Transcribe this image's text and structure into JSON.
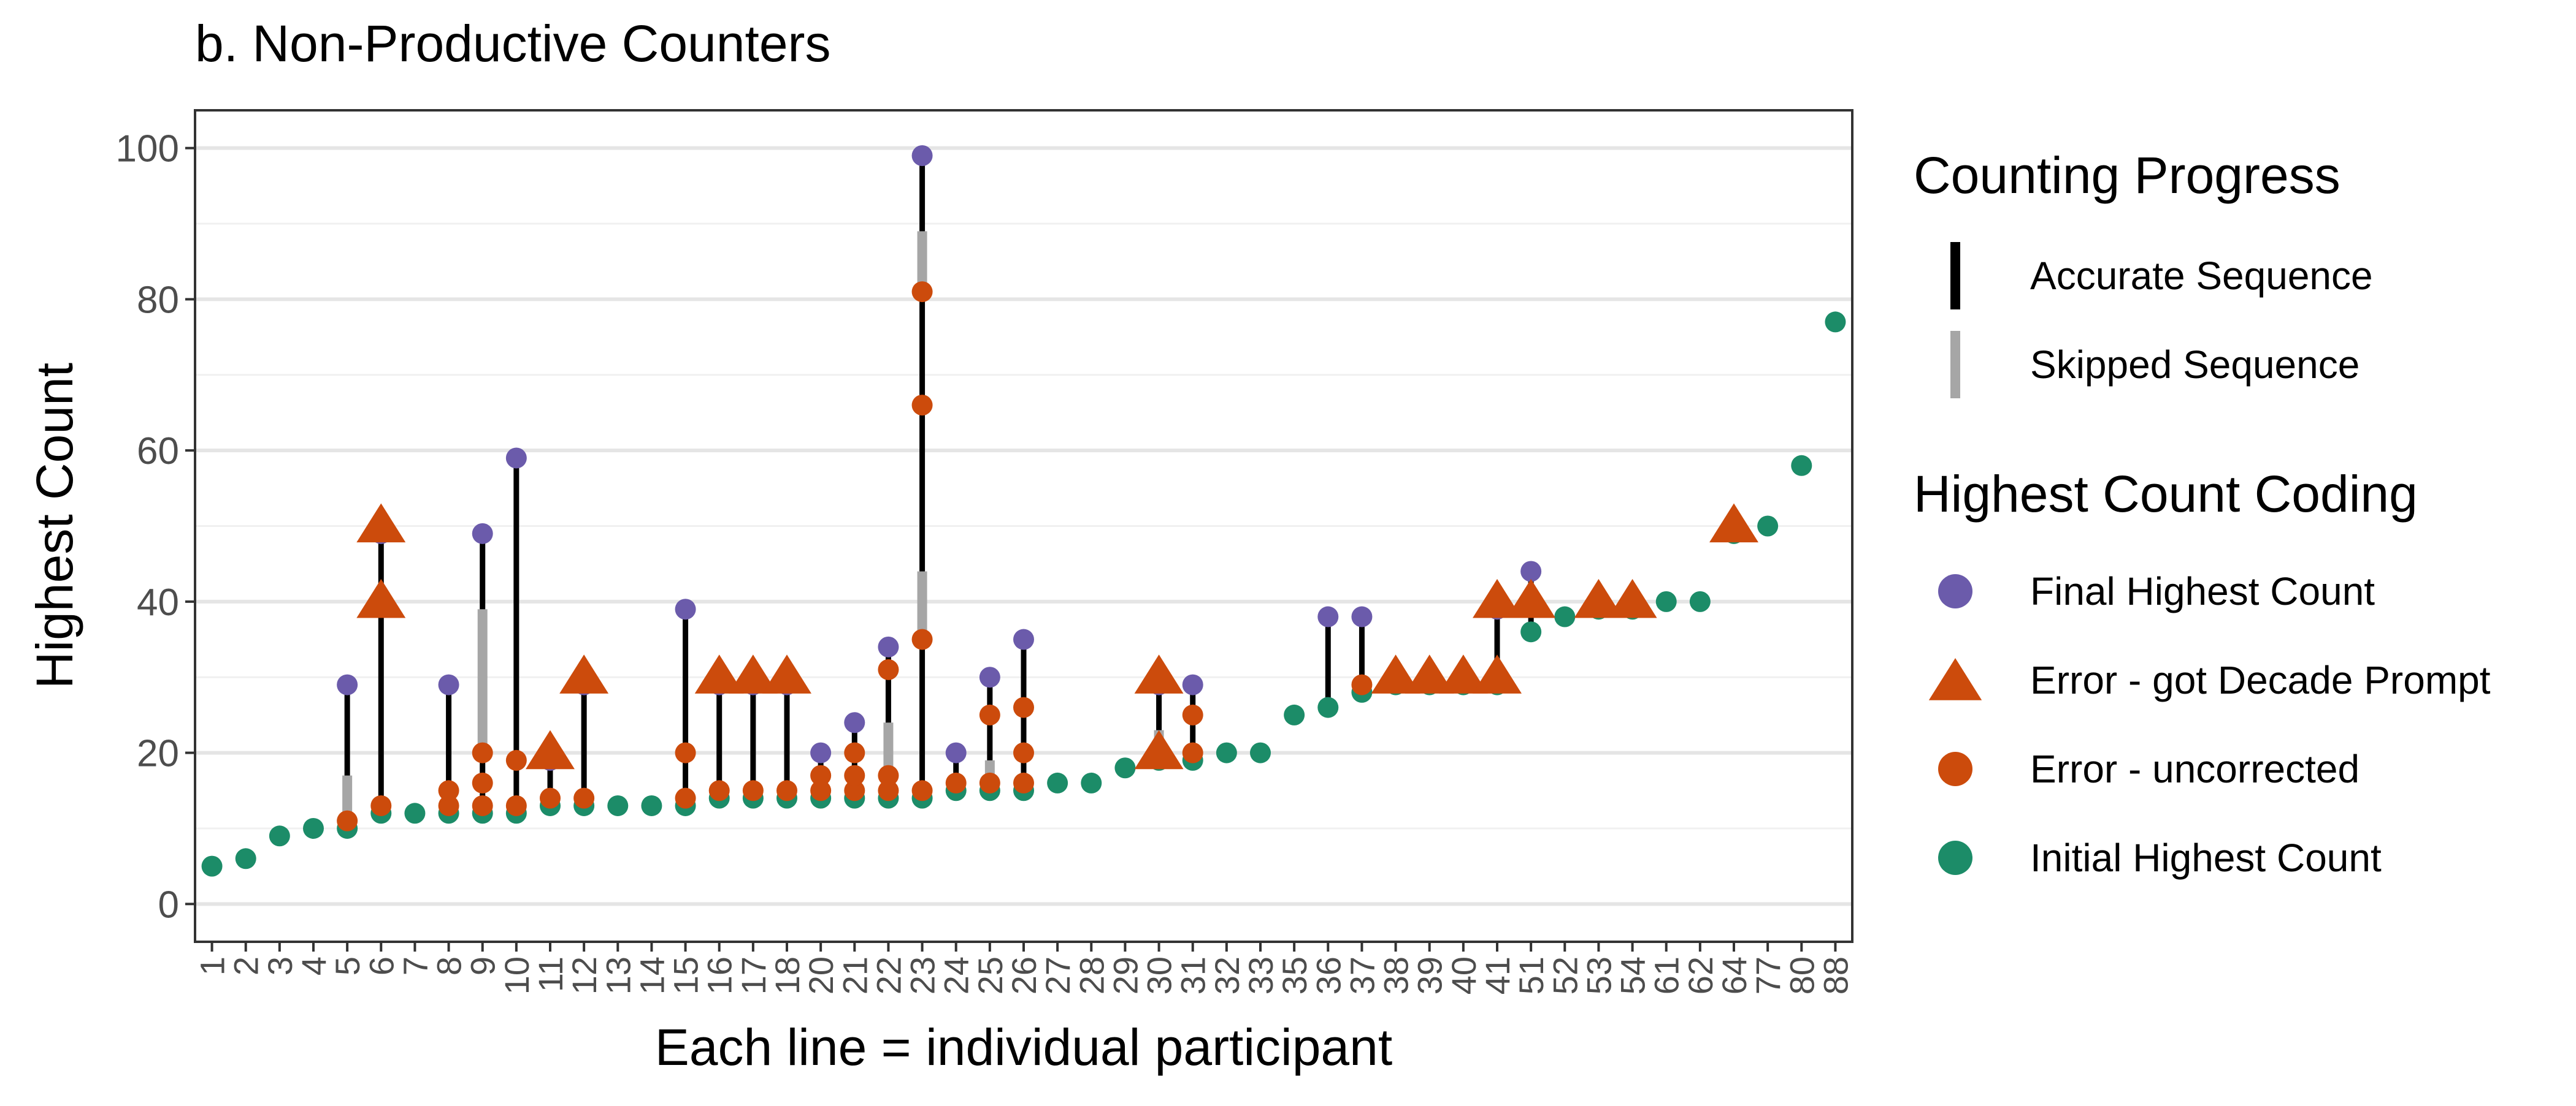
{
  "chart_data": {
    "type": "scatter",
    "title": "b. Non-Productive Counters",
    "xlabel": "Each line = individual participant",
    "ylabel": "Highest Count",
    "ylim": [
      -5,
      105
    ],
    "y_ticks": [
      0,
      20,
      40,
      60,
      80,
      100
    ],
    "grid": true,
    "legend_position": "right",
    "categories": [
      "1",
      "2",
      "3",
      "4",
      "5",
      "6",
      "7",
      "8",
      "9",
      "10",
      "11",
      "12",
      "13",
      "14",
      "15",
      "16",
      "17",
      "18",
      "20",
      "21",
      "22",
      "23",
      "24",
      "25",
      "26",
      "27",
      "28",
      "29",
      "30",
      "31",
      "32",
      "33",
      "35",
      "36",
      "37",
      "38",
      "39",
      "40",
      "41",
      "51",
      "52",
      "53",
      "54",
      "61",
      "62",
      "64",
      "77",
      "80",
      "88"
    ],
    "legend": {
      "progress": {
        "title": "Counting Progress",
        "items": [
          {
            "label": "Accurate Sequence",
            "color": "#000000"
          },
          {
            "label": "Skipped Sequence",
            "color": "#a6a6a6"
          }
        ]
      },
      "coding": {
        "title": "Highest Count Coding",
        "items": [
          {
            "label": "Final Highest Count",
            "color": "#6b5bab",
            "shape": "circle"
          },
          {
            "label": "Error - got Decade Prompt",
            "color": "#cc4b0c",
            "shape": "triangle"
          },
          {
            "label": "Error - uncorrected",
            "color": "#cc4b0c",
            "shape": "circle"
          },
          {
            "label": "Initial Highest Count",
            "color": "#1c8c68",
            "shape": "circle"
          }
        ]
      }
    },
    "participants": [
      {
        "x": "1",
        "initial": 5
      },
      {
        "x": "2",
        "initial": 6
      },
      {
        "x": "3",
        "initial": 9
      },
      {
        "x": "4",
        "initial": 10
      },
      {
        "x": "5",
        "initial": 10,
        "final": 29,
        "errors": [
          11
        ],
        "skips": [
          [
            11,
            17
          ]
        ]
      },
      {
        "x": "6",
        "initial": 12,
        "final": 49,
        "errors": [
          13
        ],
        "prompts": [
          40,
          50
        ]
      },
      {
        "x": "7",
        "initial": 12
      },
      {
        "x": "8",
        "initial": 12,
        "final": 29,
        "errors": [
          13,
          15
        ]
      },
      {
        "x": "9",
        "initial": 12,
        "final": 49,
        "errors": [
          13,
          16,
          20
        ],
        "skips": [
          [
            20,
            39
          ]
        ]
      },
      {
        "x": "10",
        "initial": 12,
        "final": 59,
        "errors": [
          13,
          19
        ]
      },
      {
        "x": "11",
        "initial": 13,
        "final": 19,
        "errors": [
          14
        ],
        "prompts": [
          20
        ]
      },
      {
        "x": "12",
        "initial": 13,
        "final": 29,
        "errors": [
          14
        ],
        "prompts": [
          30
        ]
      },
      {
        "x": "13",
        "initial": 13
      },
      {
        "x": "14",
        "initial": 13
      },
      {
        "x": "15",
        "initial": 13,
        "final": 39,
        "errors": [
          14,
          20
        ]
      },
      {
        "x": "16",
        "initial": 14,
        "final": 29,
        "errors": [
          15
        ],
        "prompts": [
          30
        ]
      },
      {
        "x": "17",
        "initial": 14,
        "final": 29,
        "errors": [
          15
        ],
        "prompts": [
          30
        ]
      },
      {
        "x": "18",
        "initial": 14,
        "final": 29,
        "errors": [
          15
        ],
        "prompts": [
          30
        ]
      },
      {
        "x": "20",
        "initial": 14,
        "final": 20,
        "errors": [
          15,
          17
        ]
      },
      {
        "x": "21",
        "initial": 14,
        "final": 24,
        "errors": [
          15,
          17,
          20
        ]
      },
      {
        "x": "22",
        "initial": 14,
        "final": 34,
        "errors": [
          15,
          17,
          31
        ],
        "skips": [
          [
            17,
            24
          ]
        ]
      },
      {
        "x": "23",
        "initial": 14,
        "final": 99,
        "errors": [
          15,
          35,
          66,
          81
        ],
        "skips": [
          [
            35,
            44
          ],
          [
            81,
            89
          ]
        ]
      },
      {
        "x": "24",
        "initial": 15,
        "final": 20,
        "errors": [
          16
        ]
      },
      {
        "x": "25",
        "initial": 15,
        "final": 30,
        "errors": [
          16,
          25
        ],
        "skips": [
          [
            16,
            19
          ]
        ]
      },
      {
        "x": "26",
        "initial": 15,
        "final": 35,
        "errors": [
          16,
          20,
          26
        ]
      },
      {
        "x": "27",
        "initial": 16
      },
      {
        "x": "28",
        "initial": 16
      },
      {
        "x": "29",
        "initial": 18
      },
      {
        "x": "30",
        "initial": 19,
        "final": 29,
        "errors": [],
        "prompts": [
          20,
          30
        ],
        "skips": [
          [
            20,
            23
          ]
        ]
      },
      {
        "x": "31",
        "initial": 19,
        "final": 29,
        "errors": [
          20,
          25
        ]
      },
      {
        "x": "32",
        "initial": 20
      },
      {
        "x": "33",
        "initial": 20
      },
      {
        "x": "35",
        "initial": 25
      },
      {
        "x": "36",
        "initial": 26,
        "final": 38
      },
      {
        "x": "37",
        "initial": 28,
        "final": 38,
        "errors": [
          29
        ]
      },
      {
        "x": "38",
        "initial": 29,
        "prompts": [
          30
        ]
      },
      {
        "x": "39",
        "initial": 29,
        "prompts": [
          30
        ]
      },
      {
        "x": "40",
        "initial": 29,
        "prompts": [
          30
        ]
      },
      {
        "x": "41",
        "initial": 29,
        "final": 39,
        "prompts": [
          30,
          40
        ]
      },
      {
        "x": "51",
        "initial": 36,
        "final": 44,
        "prompts": [
          40
        ]
      },
      {
        "x": "52",
        "initial": 38
      },
      {
        "x": "53",
        "initial": 39,
        "prompts": [
          40
        ]
      },
      {
        "x": "54",
        "initial": 39,
        "prompts": [
          40
        ]
      },
      {
        "x": "61",
        "initial": 40
      },
      {
        "x": "62",
        "initial": 40
      },
      {
        "x": "64",
        "initial": 49,
        "prompts": [
          50
        ]
      },
      {
        "x": "77",
        "initial": 50
      },
      {
        "x": "80",
        "initial": 58
      },
      {
        "x": "88",
        "initial": 77
      }
    ]
  }
}
